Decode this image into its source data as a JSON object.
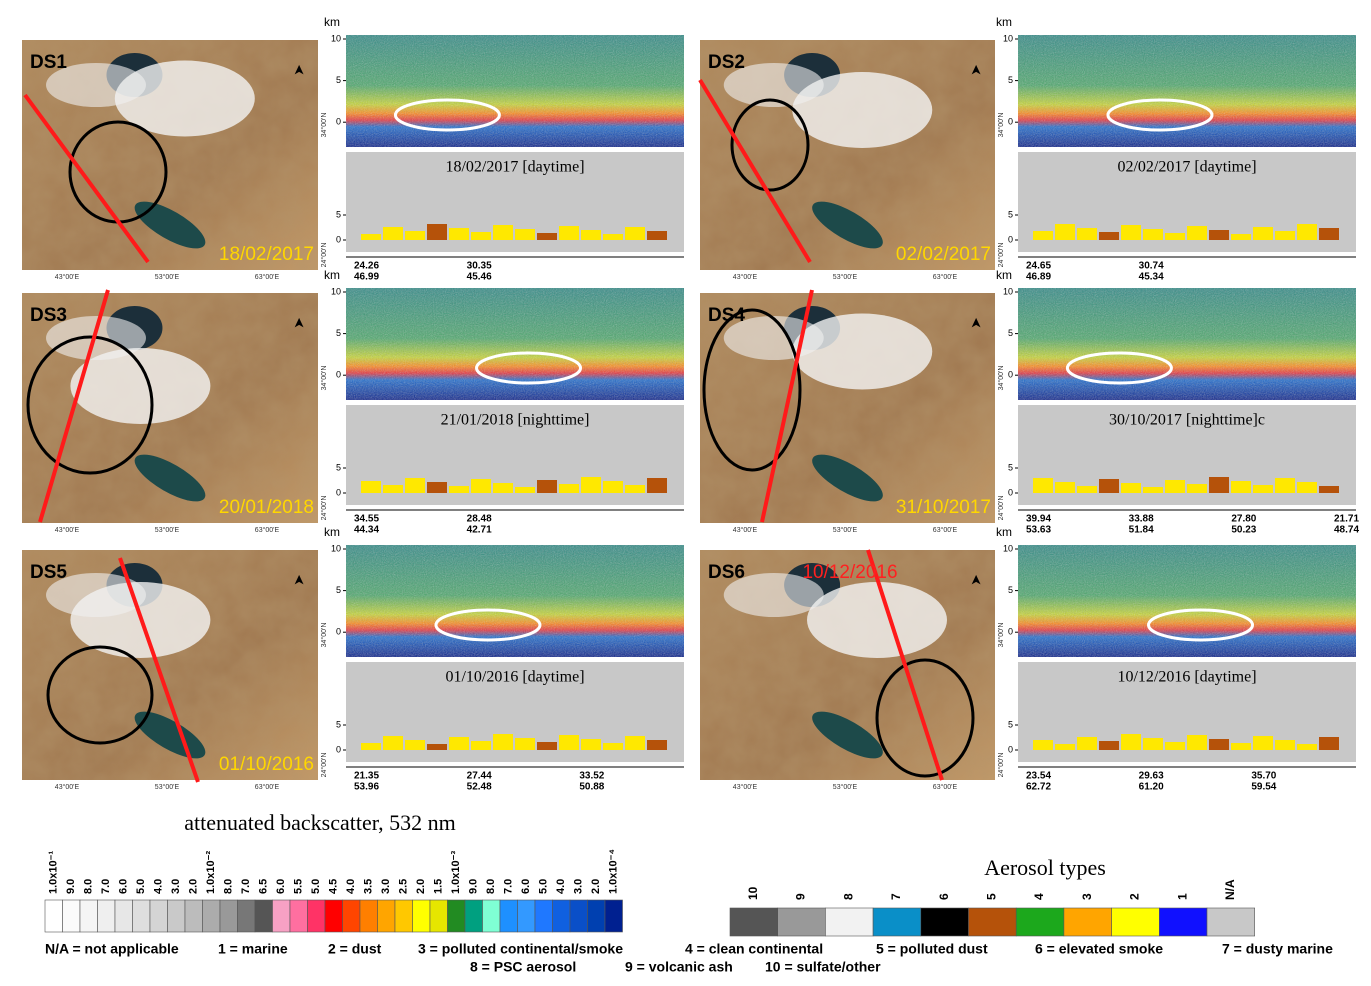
{
  "map_labels": {
    "lon": [
      "43°00'E",
      "53°00'E",
      "63°00'E"
    ],
    "lat": [
      "34°00'N",
      "24°00'N"
    ]
  },
  "profile_axis": {
    "unit": "km",
    "upper_ticks": [
      10,
      5,
      0
    ],
    "lower_ticks": [
      5,
      0
    ]
  },
  "panels": [
    {
      "id": "DS1",
      "map_date": "18/02/2017",
      "map_date_color": "#ffd700",
      "caption": "18/02/2017 [daytime]",
      "coords": [
        [
          "24.26",
          "46.99"
        ],
        [
          "30.35",
          "45.46"
        ]
      ]
    },
    {
      "id": "DS2",
      "map_date": "02/02/2017",
      "map_date_color": "#ffd700",
      "caption": "02/02/2017 [daytime]",
      "coords": [
        [
          "24.65",
          "46.89"
        ],
        [
          "30.74",
          "45.34"
        ]
      ]
    },
    {
      "id": "DS3",
      "map_date": "20/01/2018",
      "map_date_color": "#ffd700",
      "caption": "21/01/2018 [nighttime]",
      "coords": [
        [
          "34.55",
          "44.34"
        ],
        [
          "28.48",
          "42.71"
        ]
      ]
    },
    {
      "id": "DS4",
      "map_date": "31/10/2017",
      "map_date_color": "#ffd700",
      "caption": "30/10/2017 [nighttime]c",
      "coords": [
        [
          "39.94",
          "53.63"
        ],
        [
          "33.88",
          "51.84"
        ],
        [
          "27.80",
          "50.23"
        ],
        [
          "21.71",
          "48.74"
        ]
      ]
    },
    {
      "id": "DS5",
      "map_date": "01/10/2016",
      "map_date_color": "#ffd700",
      "caption": "01/10/2016 [daytime]",
      "coords": [
        [
          "21.35",
          "53.96"
        ],
        [
          "27.44",
          "52.48"
        ],
        [
          "33.52",
          "50.88"
        ]
      ]
    },
    {
      "id": "DS6",
      "map_date": "10/12/2016",
      "map_date_color": "#ff2020",
      "caption": "10/12/2016 [daytime]",
      "coords": [
        [
          "23.54",
          "62.72"
        ],
        [
          "29.63",
          "61.20"
        ],
        [
          "35.70",
          "59.54"
        ]
      ]
    }
  ],
  "backscatter_scale": {
    "title": "attenuated backscatter, 532 nm",
    "bins": [
      {
        "label": "1.0x10⁻¹",
        "color": "#ffffff"
      },
      {
        "label": "9.0",
        "color": "#fbfbfb"
      },
      {
        "label": "8.0",
        "color": "#f5f5f5"
      },
      {
        "label": "7.0",
        "color": "#efefef"
      },
      {
        "label": "6.0",
        "color": "#e7e7e7"
      },
      {
        "label": "5.0",
        "color": "#dedede"
      },
      {
        "label": "4.0",
        "color": "#d4d4d4"
      },
      {
        "label": "3.0",
        "color": "#c9c9c9"
      },
      {
        "label": "2.0",
        "color": "#bcbcbc"
      },
      {
        "label": "1.0x10⁻²",
        "color": "#acacac"
      },
      {
        "label": "8.0",
        "color": "#999999"
      },
      {
        "label": "7.0",
        "color": "#777777"
      },
      {
        "label": "6.5",
        "color": "#555555"
      },
      {
        "label": "6.0",
        "color": "#f7a1c4"
      },
      {
        "label": "5.5",
        "color": "#ff6fa0"
      },
      {
        "label": "5.0",
        "color": "#ff3366"
      },
      {
        "label": "4.5",
        "color": "#ff0000"
      },
      {
        "label": "4.0",
        "color": "#ff4500"
      },
      {
        "label": "3.5",
        "color": "#ff7f00"
      },
      {
        "label": "3.0",
        "color": "#ffa500"
      },
      {
        "label": "2.5",
        "color": "#ffc800"
      },
      {
        "label": "2.0",
        "color": "#ffff00"
      },
      {
        "label": "1.5",
        "color": "#e6e600"
      },
      {
        "label": "1.0x10⁻³",
        "color": "#228b22"
      },
      {
        "label": "9.0",
        "color": "#00a080"
      },
      {
        "label": "8.0",
        "color": "#7fffd4"
      },
      {
        "label": "7.0",
        "color": "#1e90ff"
      },
      {
        "label": "6.0",
        "color": "#3399ff"
      },
      {
        "label": "5.0",
        "color": "#1f78ff"
      },
      {
        "label": "4.0",
        "color": "#1060e0"
      },
      {
        "label": "3.0",
        "color": "#0a4fc8"
      },
      {
        "label": "2.0",
        "color": "#0040b0"
      },
      {
        "label": "1.0x10⁻⁴",
        "color": "#002090"
      }
    ]
  },
  "aerosol_types": {
    "title": "Aerosol types",
    "bins": [
      {
        "label": 10,
        "color": "#555555"
      },
      {
        "label": 9,
        "color": "#999999"
      },
      {
        "label": 8,
        "color": "#f2f2f2"
      },
      {
        "label": 7,
        "color": "#0a8fc8"
      },
      {
        "label": 6,
        "color": "#000000"
      },
      {
        "label": 5,
        "color": "#b5520a"
      },
      {
        "label": 4,
        "color": "#1ca81c"
      },
      {
        "label": 3,
        "color": "#ffa500"
      },
      {
        "label": 2,
        "color": "#ffff00"
      },
      {
        "label": 1,
        "color": "#1010ff"
      },
      {
        "label": "N/A",
        "color": "#c8c8c8"
      }
    ],
    "legend": [
      "N/A = not applicable",
      "1 = marine",
      "2 = dust",
      "3 = polluted continental/smoke",
      "4 = clean continental",
      "5 = polluted dust",
      "6 = elevated smoke",
      "7 = dusty marine",
      "8 = PSC aerosol",
      "9 = volcanic ash",
      "10 = sulfate/other"
    ]
  }
}
